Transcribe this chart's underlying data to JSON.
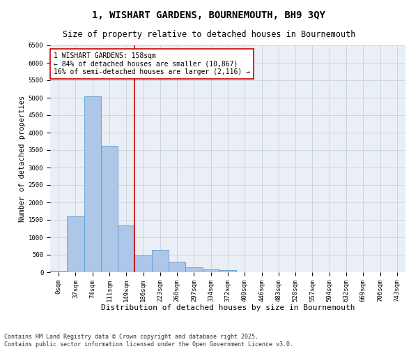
{
  "title1": "1, WISHART GARDENS, BOURNEMOUTH, BH9 3QY",
  "title2": "Size of property relative to detached houses in Bournemouth",
  "xlabel": "Distribution of detached houses by size in Bournemouth",
  "ylabel": "Number of detached properties",
  "bar_labels": [
    "0sqm",
    "37sqm",
    "74sqm",
    "111sqm",
    "149sqm",
    "186sqm",
    "223sqm",
    "260sqm",
    "297sqm",
    "334sqm",
    "372sqm",
    "409sqm",
    "446sqm",
    "483sqm",
    "520sqm",
    "557sqm",
    "594sqm",
    "632sqm",
    "669sqm",
    "706sqm",
    "743sqm"
  ],
  "bar_values": [
    50,
    1600,
    5050,
    3620,
    1350,
    480,
    650,
    300,
    150,
    90,
    60,
    0,
    0,
    0,
    0,
    0,
    0,
    0,
    0,
    0,
    0
  ],
  "bar_color": "#aec6e8",
  "bar_edge_color": "#5b9bd5",
  "vline_color": "#cc0000",
  "vline_pos": 4.5,
  "annotation_text": "1 WISHART GARDENS: 158sqm\n← 84% of detached houses are smaller (10,867)\n16% of semi-detached houses are larger (2,116) →",
  "annotation_box_color": "#cc0000",
  "ylim": [
    0,
    6500
  ],
  "yticks": [
    0,
    500,
    1000,
    1500,
    2000,
    2500,
    3000,
    3500,
    4000,
    4500,
    5000,
    5500,
    6000,
    6500
  ],
  "grid_color": "#c8d0dc",
  "bg_color": "#eaeff5",
  "footer1": "Contains HM Land Registry data © Crown copyright and database right 2025.",
  "footer2": "Contains public sector information licensed under the Open Government Licence v3.0.",
  "title1_fontsize": 10,
  "title2_fontsize": 8.5,
  "xlabel_fontsize": 8,
  "ylabel_fontsize": 7.5,
  "tick_fontsize": 6.5,
  "annotation_fontsize": 7,
  "footer_fontsize": 6
}
